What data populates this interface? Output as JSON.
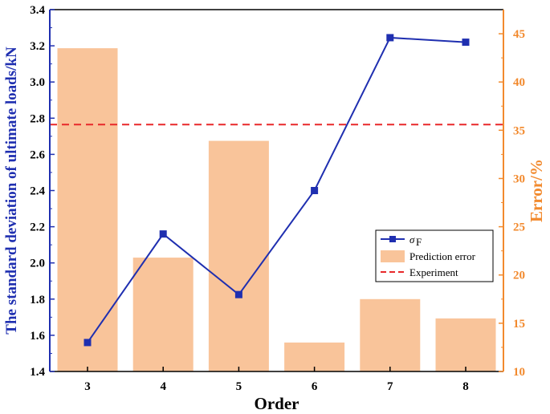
{
  "chart_data": {
    "type": "bar+line",
    "title": "",
    "xlabel": "Order",
    "ylabel_left": "The standard deviation of ultimate loads/kN",
    "ylabel_right": "Error/%",
    "categories": [
      "3",
      "4",
      "5",
      "6",
      "7",
      "8"
    ],
    "left_axis": {
      "min": 1.4,
      "max": 3.4,
      "ticks": [
        "1.4",
        "1.6",
        "1.8",
        "2.0",
        "2.2",
        "2.4",
        "2.6",
        "2.8",
        "3.0",
        "3.2",
        "3.4"
      ]
    },
    "right_axis": {
      "min": 10,
      "max": 47.5,
      "ticks": [
        "10",
        "15",
        "20",
        "25",
        "30",
        "35",
        "40",
        "45"
      ]
    },
    "series": [
      {
        "name": "Prediction error",
        "kind": "bar",
        "axis": "right",
        "color": "#f9c49a",
        "values": [
          43.5,
          21.8,
          33.9,
          13.0,
          17.5,
          15.5
        ]
      },
      {
        "name": "σF",
        "kind": "line",
        "axis": "left",
        "color": "#1f2fb0",
        "marker": "square",
        "values": [
          1.56,
          2.16,
          1.825,
          2.4,
          3.245,
          3.22
        ]
      },
      {
        "name": "Experiment",
        "kind": "reference-line",
        "axis": "left",
        "color": "#e8282a",
        "style": "dashed",
        "value": 2.765
      }
    ],
    "legend": {
      "placement": "right-center",
      "entries": [
        {
          "label": "σ",
          "sub": "F",
          "kind": "line"
        },
        {
          "label": "Prediction error",
          "kind": "bar"
        },
        {
          "label": "Experiment",
          "kind": "dashed"
        }
      ]
    },
    "colors": {
      "left_axis": "#1f2fb0",
      "right_axis": "#f28a2e",
      "frame": "#000000"
    }
  }
}
